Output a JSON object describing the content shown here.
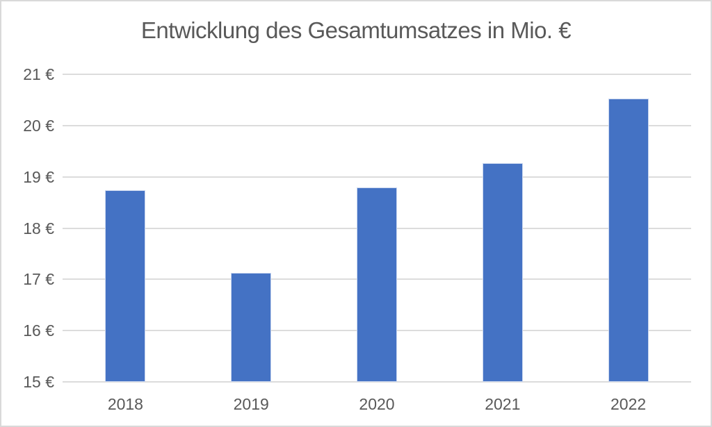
{
  "chart_data": {
    "type": "bar",
    "title": "Entwicklung des Gesamtumsatzes in Mio. €",
    "categories": [
      "2018",
      "2019",
      "2020",
      "2021",
      "2022"
    ],
    "values": [
      18.74,
      17.12,
      18.79,
      19.26,
      20.52
    ],
    "unit": "Mio. €",
    "xlabel": "",
    "ylabel": "",
    "ylim": [
      15,
      21
    ],
    "ytick_step": 1,
    "ytick_labels": [
      "15 €",
      "16 €",
      "17 €",
      "18 €",
      "19 €",
      "20 €",
      "21 €"
    ],
    "grid": true,
    "legend": false,
    "colors": {
      "bar": "#4472C4",
      "bar_border": "#C9D6EF",
      "gridline": "#DCDCDC",
      "text": "#595959",
      "frame_border": "#D9D9D9",
      "background": "#FFFFFF"
    }
  }
}
